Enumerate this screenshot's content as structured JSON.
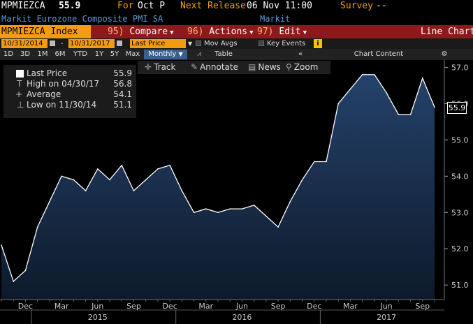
{
  "header": {
    "ticker": "MPMIEZCA",
    "last": "55.9",
    "for_label": "For",
    "for_value": "Oct P",
    "next_release_label": "Next Release",
    "next_release_value": "06 Nov 11:00",
    "survey_label": "Survey",
    "survey_value": "--",
    "name": "Markit Eurozone Composite PMI SA",
    "source": "Markit"
  },
  "menu": {
    "security": "MPMIEZCA Index",
    "compare_num": "95)",
    "compare": "Compare",
    "actions_num": "96)",
    "actions": "Actions",
    "edit_num": "97)",
    "edit": "Edit",
    "chart_type": "Line Chart"
  },
  "controls": {
    "start_date": "10/31/2014",
    "dash": "-",
    "end_date": "10/31/2017",
    "field": "Last Price",
    "mov_avgs": "Mov Avgs",
    "key_events": "Key Events",
    "info": "i"
  },
  "periods": [
    "1D",
    "3D",
    "1M",
    "6M",
    "YTD",
    "1Y",
    "5Y",
    "Max"
  ],
  "frequency": "Monthly",
  "table_label": "Table",
  "chart_content": "Chart Content",
  "toolbar": {
    "track": "Track",
    "annotate": "Annotate",
    "news": "News",
    "zoom": "Zoom"
  },
  "legend": [
    {
      "label": "Last Price",
      "value": "55.9"
    },
    {
      "label": "High on 04/30/17",
      "value": "56.8"
    },
    {
      "label": "Average",
      "value": "54.1"
    },
    {
      "label": "Low on 11/30/14",
      "value": "51.1"
    }
  ],
  "colors": {
    "background": "#000000",
    "area_fill_top": "#24426a",
    "area_fill_bottom": "#0d1a2b",
    "line": "#ffffff",
    "accent": "#f39c12",
    "menu_bar": "#8c1a1a"
  },
  "chart_data": {
    "type": "area",
    "title": "",
    "x": [
      "2014-10",
      "2014-11",
      "2014-12",
      "2015-01",
      "2015-02",
      "2015-03",
      "2015-04",
      "2015-05",
      "2015-06",
      "2015-07",
      "2015-08",
      "2015-09",
      "2015-10",
      "2015-11",
      "2015-12",
      "2016-01",
      "2016-02",
      "2016-03",
      "2016-04",
      "2016-05",
      "2016-06",
      "2016-07",
      "2016-08",
      "2016-09",
      "2016-10",
      "2016-11",
      "2016-12",
      "2017-01",
      "2017-02",
      "2017-03",
      "2017-04",
      "2017-05",
      "2017-06",
      "2017-07",
      "2017-08",
      "2017-09",
      "2017-10"
    ],
    "series": [
      {
        "values": [
          52.1,
          51.1,
          51.4,
          52.6,
          53.3,
          54.0,
          53.9,
          53.6,
          54.2,
          53.9,
          54.3,
          53.6,
          53.9,
          54.2,
          54.3,
          53.6,
          53.0,
          53.1,
          53.0,
          53.1,
          53.1,
          53.2,
          52.9,
          52.6,
          53.3,
          53.9,
          54.4,
          54.4,
          56.0,
          56.4,
          56.8,
          56.8,
          56.3,
          55.7,
          55.7,
          56.7,
          55.9
        ]
      }
    ],
    "ylim": [
      50.6,
      57.2
    ],
    "y_ticks": [
      "51.0",
      "52.0",
      "53.0",
      "54.0",
      "55.0",
      "56.0",
      "57.0"
    ],
    "x_month_ticks": [
      {
        "label": "Dec",
        "x": "2014-12"
      },
      {
        "label": "Mar",
        "x": "2015-03"
      },
      {
        "label": "Jun",
        "x": "2015-06"
      },
      {
        "label": "Sep",
        "x": "2015-09"
      },
      {
        "label": "Dec",
        "x": "2015-12"
      },
      {
        "label": "Mar",
        "x": "2016-03"
      },
      {
        "label": "Jun",
        "x": "2016-06"
      },
      {
        "label": "Sep",
        "x": "2016-09"
      },
      {
        "label": "Dec",
        "x": "2016-12"
      },
      {
        "label": "Mar",
        "x": "2017-03"
      },
      {
        "label": "Jun",
        "x": "2017-06"
      },
      {
        "label": "Sep",
        "x": "2017-09"
      }
    ],
    "x_year_ticks": [
      {
        "label": "2015",
        "x": "2015-06"
      },
      {
        "label": "2016",
        "x": "2016-06"
      },
      {
        "label": "2017",
        "x": "2017-06"
      }
    ],
    "grid": false,
    "legend_position": "top-left"
  }
}
